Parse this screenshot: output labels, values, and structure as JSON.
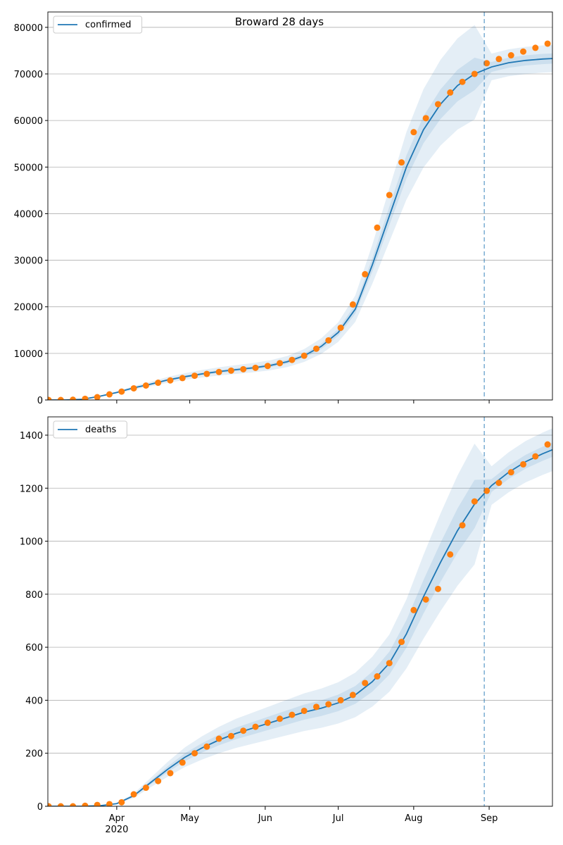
{
  "chart_data": [
    {
      "type": "line",
      "title": "Broward 28 days",
      "grid": true,
      "legend": "upper left",
      "xlim": [
        63.7,
        271
      ],
      "ylim": [
        0,
        83300
      ],
      "xticks": [
        {
          "value": 92,
          "label": "Apr\n2020"
        },
        {
          "value": 122,
          "label": "May"
        },
        {
          "value": 153,
          "label": "Jun"
        },
        {
          "value": 183,
          "label": "Jul"
        },
        {
          "value": 214,
          "label": "Aug"
        },
        {
          "value": 245,
          "label": "Sep"
        }
      ],
      "yticks": [
        0,
        10000,
        20000,
        30000,
        40000,
        50000,
        60000,
        70000,
        80000
      ],
      "vline": 243,
      "x": [
        64,
        71,
        78,
        85,
        92,
        99,
        106,
        113,
        120,
        127,
        134,
        141,
        148,
        155,
        162,
        169,
        176,
        183,
        190,
        197,
        204,
        211,
        218,
        225,
        232,
        239,
        246,
        253,
        260,
        267,
        271
      ],
      "series": [
        {
          "name": "confirmed",
          "color": "#1f77b4",
          "values": [
            0,
            0,
            150,
            800,
            1600,
            2600,
            3400,
            4300,
            5000,
            5600,
            6100,
            6500,
            6900,
            7400,
            8200,
            9500,
            11500,
            14500,
            19500,
            29000,
            39500,
            50000,
            58000,
            63500,
            67500,
            70000,
            71500,
            72400,
            72900,
            73200,
            73300
          ]
        }
      ],
      "bands": [
        {
          "lower": [
            0,
            0,
            129,
            688,
            1376,
            2236,
            2924,
            3698,
            4300,
            4816,
            5246,
            5590,
            5934,
            6364,
            7052,
            8170,
            9890,
            12470,
            16770,
            24940,
            33970,
            43000,
            49880,
            54610,
            58050,
            60200,
            68640,
            69504,
            69984,
            70272,
            70368
          ],
          "upper": [
            0,
            0,
            173,
            920,
            1840,
            2990,
            3910,
            4945,
            5750,
            6440,
            7015,
            7475,
            7935,
            8510,
            9430,
            10925,
            13225,
            16675,
            22425,
            33350,
            45425,
            57500,
            66700,
            73025,
            77625,
            80500,
            74360,
            75296,
            75816,
            76128,
            76232
          ]
        },
        {
          "lower": [
            0,
            0,
            143,
            760,
            1520,
            2470,
            3230,
            4085,
            4750,
            5320,
            5795,
            6175,
            6555,
            7030,
            7790,
            9025,
            10925,
            13775,
            18525,
            27550,
            37525,
            47500,
            55100,
            60325,
            64125,
            66500,
            70428,
            71314,
            71807,
            72102,
            72201
          ],
          "upper": [
            0,
            0,
            158,
            840,
            1680,
            2730,
            3570,
            4515,
            5250,
            5880,
            6405,
            6825,
            7245,
            7770,
            8610,
            9975,
            12075,
            15225,
            20475,
            30450,
            41475,
            52500,
            60900,
            66675,
            70875,
            73500,
            72573,
            73486,
            73994,
            74298,
            74400
          ]
        }
      ],
      "observed": {
        "color": "#ff7f0e",
        "x": [
          64,
          69,
          74,
          79,
          84,
          89,
          94,
          99,
          104,
          109,
          114,
          119,
          124,
          129,
          134,
          139,
          144,
          149,
          154,
          159,
          164,
          169,
          174,
          179,
          184,
          189,
          194,
          199,
          204,
          209,
          214,
          219,
          224,
          229,
          234,
          239,
          244,
          249,
          254,
          259,
          264,
          269
        ],
        "values": [
          0,
          0,
          50,
          250,
          600,
          1200,
          1800,
          2500,
          3100,
          3700,
          4200,
          4700,
          5200,
          5600,
          6000,
          6300,
          6600,
          6900,
          7300,
          7900,
          8600,
          9500,
          11000,
          12800,
          15500,
          20500,
          27000,
          37000,
          44000,
          51000,
          57500,
          60500,
          63500,
          66000,
          68300,
          70000,
          72300,
          73200,
          74000,
          74800,
          75600,
          76500
        ]
      }
    },
    {
      "type": "line",
      "grid": true,
      "legend": "upper left",
      "xlim": [
        63.7,
        271
      ],
      "ylim": [
        0,
        1469
      ],
      "xticks": [
        {
          "value": 92,
          "label": "Apr\n2020"
        },
        {
          "value": 122,
          "label": "May"
        },
        {
          "value": 153,
          "label": "Jun"
        },
        {
          "value": 183,
          "label": "Jul"
        },
        {
          "value": 214,
          "label": "Aug"
        },
        {
          "value": 245,
          "label": "Sep"
        }
      ],
      "yticks": [
        0,
        200,
        400,
        600,
        800,
        1000,
        1200,
        1400
      ],
      "vline": 243,
      "x": [
        64,
        71,
        78,
        85,
        92,
        99,
        106,
        113,
        120,
        127,
        134,
        141,
        148,
        155,
        162,
        169,
        176,
        183,
        190,
        197,
        204,
        211,
        218,
        225,
        232,
        239,
        246,
        253,
        260,
        267,
        271
      ],
      "series": [
        {
          "name": "deaths",
          "color": "#1f77b4",
          "values": [
            0,
            0,
            0,
            2,
            10,
            40,
            90,
            140,
            185,
            220,
            250,
            275,
            295,
            315,
            335,
            355,
            370,
            390,
            420,
            470,
            540,
            650,
            790,
            920,
            1040,
            1140,
            1210,
            1260,
            1300,
            1330,
            1345
          ]
        }
      ],
      "bands": [
        {
          "lower": [
            0,
            0,
            0,
            1.6,
            8,
            32,
            72,
            112,
            148,
            176,
            200,
            220,
            236,
            252,
            268,
            284,
            296,
            312,
            336,
            376,
            432,
            520,
            632,
            736,
            832,
            912,
            1137.4,
            1184.4,
            1222,
            1250.2,
            1264.3
          ],
          "upper": [
            0,
            0,
            0,
            2.4,
            12,
            48,
            108,
            168,
            222,
            264,
            300,
            330,
            354,
            378,
            402,
            426,
            444,
            468,
            504,
            564,
            648,
            780,
            948,
            1104,
            1248,
            1368,
            1282.6,
            1335.6,
            1378,
            1409.8,
            1425.7
          ]
        },
        {
          "lower": [
            0,
            0,
            0,
            1.84,
            9.2,
            36.8,
            82.8,
            128.8,
            170.2,
            202.4,
            230,
            253,
            271.4,
            289.8,
            308.2,
            326.6,
            340.4,
            358.8,
            386.4,
            432.4,
            496.8,
            598,
            726.8,
            846.4,
            956.8,
            1048.8,
            1185.8,
            1234.8,
            1274,
            1303.4,
            1318.1
          ],
          "upper": [
            0,
            0,
            0,
            2.16,
            10.8,
            43.2,
            97.2,
            151.2,
            199.8,
            237.6,
            270,
            297,
            318.6,
            340.2,
            361.8,
            383.4,
            399.6,
            421.2,
            453.6,
            507.6,
            583.2,
            702,
            853.2,
            993.6,
            1123.2,
            1231.2,
            1234.2,
            1285.2,
            1326,
            1356.6,
            1371.9
          ]
        }
      ],
      "observed": {
        "color": "#ff7f0e",
        "x": [
          64,
          69,
          74,
          79,
          84,
          89,
          94,
          99,
          104,
          109,
          114,
          119,
          124,
          129,
          134,
          139,
          144,
          149,
          154,
          159,
          164,
          169,
          174,
          179,
          184,
          189,
          194,
          199,
          204,
          209,
          214,
          219,
          224,
          229,
          234,
          239,
          244,
          249,
          254,
          259,
          264,
          269
        ],
        "values": [
          0,
          0,
          0,
          2,
          5,
          8,
          15,
          45,
          70,
          95,
          125,
          165,
          200,
          225,
          255,
          265,
          285,
          300,
          315,
          330,
          345,
          360,
          375,
          385,
          400,
          420,
          465,
          490,
          540,
          620,
          740,
          780,
          820,
          950,
          1060,
          1150,
          1190,
          1220,
          1260,
          1290,
          1320,
          1365
        ]
      }
    }
  ]
}
